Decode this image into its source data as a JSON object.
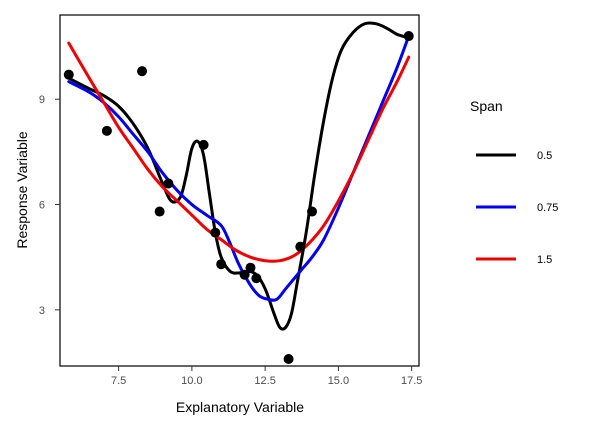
{
  "chart_data": {
    "type": "scatter",
    "title": "",
    "xlabel": "Explanatory Variable",
    "ylabel": "Response Variable",
    "xlim": [
      5.5,
      17.75
    ],
    "ylim": [
      1.4,
      11.4
    ],
    "xticks": [
      7.5,
      10.0,
      12.5,
      15.0,
      17.5
    ],
    "xtick_labels": [
      "7.5",
      "10.0",
      "12.5",
      "15.0",
      "17.5"
    ],
    "yticks": [
      3,
      6,
      9
    ],
    "ytick_labels": [
      "3",
      "6",
      "9"
    ],
    "grid": false,
    "legend": {
      "title": "Span",
      "position": "right"
    },
    "points": [
      {
        "x": 5.8,
        "y": 9.7
      },
      {
        "x": 7.1,
        "y": 8.1
      },
      {
        "x": 8.3,
        "y": 9.8
      },
      {
        "x": 8.9,
        "y": 5.8
      },
      {
        "x": 9.2,
        "y": 6.6
      },
      {
        "x": 10.4,
        "y": 7.7
      },
      {
        "x": 10.8,
        "y": 5.2
      },
      {
        "x": 11.0,
        "y": 4.3
      },
      {
        "x": 11.8,
        "y": 4.0
      },
      {
        "x": 12.0,
        "y": 4.2
      },
      {
        "x": 12.2,
        "y": 3.9
      },
      {
        "x": 13.3,
        "y": 1.6
      },
      {
        "x": 13.7,
        "y": 4.8
      },
      {
        "x": 14.1,
        "y": 5.8
      },
      {
        "x": 17.4,
        "y": 10.8
      }
    ],
    "series": [
      {
        "name": "0.5",
        "color": "#000000",
        "x": [
          5.8,
          6.5,
          7.0,
          7.5,
          8.0,
          8.5,
          9.0,
          9.3,
          9.6,
          9.8,
          10.0,
          10.2,
          10.4,
          10.6,
          10.8,
          11.0,
          11.3,
          11.6,
          11.9,
          12.2,
          12.5,
          12.8,
          13.0,
          13.2,
          13.4,
          13.6,
          13.9,
          14.2,
          14.5,
          14.8,
          15.1,
          15.5,
          15.9,
          16.3,
          16.7,
          17.0,
          17.4
        ],
        "y": [
          9.6,
          9.3,
          9.1,
          8.8,
          8.3,
          7.6,
          6.6,
          6.1,
          6.2,
          6.8,
          7.6,
          7.8,
          7.4,
          6.3,
          5.2,
          4.5,
          4.1,
          4.05,
          4.1,
          4.0,
          3.6,
          2.9,
          2.5,
          2.5,
          2.9,
          3.8,
          5.2,
          6.9,
          8.4,
          9.6,
          10.4,
          10.9,
          11.15,
          11.15,
          11.0,
          10.85,
          10.75
        ]
      },
      {
        "name": "0.75",
        "color": "#0000ee",
        "x": [
          5.8,
          6.5,
          7.0,
          7.5,
          8.0,
          8.5,
          9.0,
          9.5,
          10.0,
          10.5,
          11.0,
          11.3,
          11.6,
          12.0,
          12.3,
          12.6,
          12.9,
          13.2,
          13.5,
          13.8,
          14.1,
          14.5,
          15.0,
          15.5,
          16.0,
          16.5,
          17.0,
          17.4
        ],
        "y": [
          9.5,
          9.2,
          8.9,
          8.5,
          8.0,
          7.5,
          6.9,
          6.4,
          6.0,
          5.7,
          5.4,
          4.9,
          4.3,
          3.7,
          3.4,
          3.3,
          3.3,
          3.6,
          3.9,
          4.2,
          4.5,
          5.0,
          5.9,
          6.9,
          7.9,
          8.9,
          9.9,
          10.8
        ]
      },
      {
        "name": "1.5",
        "color": "#ee0000",
        "x": [
          5.8,
          6.5,
          7.0,
          7.5,
          8.0,
          8.5,
          9.0,
          9.5,
          10.0,
          10.5,
          11.0,
          11.5,
          12.0,
          12.5,
          13.0,
          13.5,
          14.0,
          14.5,
          15.0,
          15.5,
          16.0,
          16.5,
          17.0,
          17.4
        ],
        "y": [
          10.6,
          9.6,
          8.9,
          8.2,
          7.6,
          7.0,
          6.5,
          6.1,
          5.7,
          5.3,
          5.0,
          4.7,
          4.5,
          4.4,
          4.4,
          4.55,
          4.9,
          5.4,
          6.1,
          6.9,
          7.8,
          8.7,
          9.5,
          10.2
        ]
      }
    ]
  }
}
